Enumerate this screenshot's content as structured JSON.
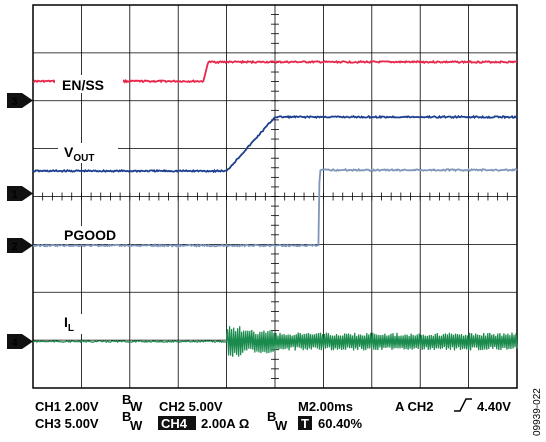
{
  "chart_data": {
    "type": "line",
    "title": "",
    "grid": "on",
    "x_divisions": 10,
    "y_divisions": 8,
    "time_per_division_ms": 2.0,
    "series": [
      {
        "name": "EN/SS",
        "channel": "3",
        "color": "#e8264a",
        "x": [
          0,
          3.52,
          3.62,
          10
        ],
        "y": [
          0.5,
          0.5,
          1.0,
          1.0
        ]
      },
      {
        "name": "VOUT",
        "channel": "1",
        "color": "#1d3f8f",
        "x": [
          0,
          4.0,
          5.0,
          10
        ],
        "y": [
          0.0,
          0.0,
          1.0,
          1.0
        ]
      },
      {
        "name": "PGOOD",
        "channel": "2",
        "color": "#7f96bb",
        "x": [
          0,
          5.9,
          5.92,
          10
        ],
        "y": [
          0.0,
          0.0,
          1.0,
          1.0
        ]
      },
      {
        "name": "IL",
        "channel": "4",
        "color": "#1a8a4d",
        "x": [
          0,
          4.0,
          10
        ],
        "y": [
          0.0,
          0.0,
          0.0
        ]
      }
    ],
    "labels": {
      "en_ss": "EN/SS",
      "vout_main": "V",
      "vout_sub": "OUT",
      "pgood": "PGOOD",
      "il_main": "I",
      "il_sub": "L"
    },
    "markers": [
      "3",
      "1",
      "2",
      "4"
    ]
  },
  "footer": {
    "ch1": "CH1  2.00V",
    "ch2": "CH2  5.00V",
    "ch3": "CH3  5.00V",
    "ch4_tag": "CH4",
    "ch4_value": "2.00A Ω",
    "bw_b": "B",
    "bw_w": "W",
    "timebase": "M2.00ms",
    "trigger_prefix": "A  CH2",
    "trigger_level": "4.40V",
    "t_tag": "T",
    "t_position": "60.40%"
  },
  "figure_id": "09939-022"
}
